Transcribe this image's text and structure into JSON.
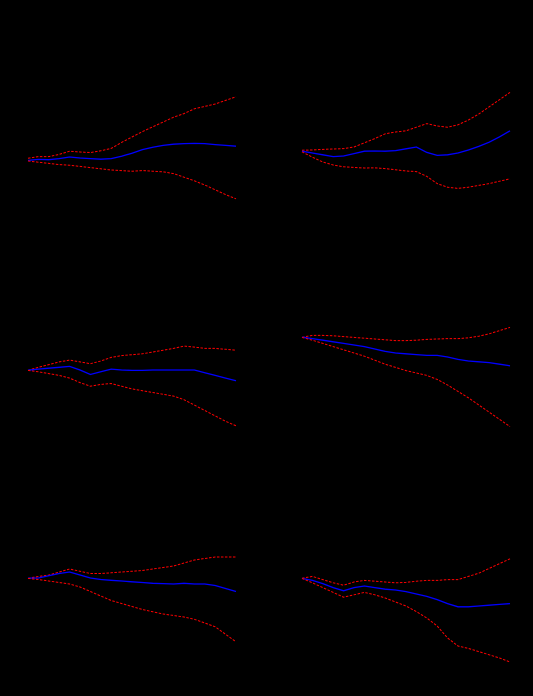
{
  "colors": {
    "background": "#000000",
    "band": "#ff0000",
    "center": "#0000ff"
  },
  "chart_data": [
    {
      "type": "line",
      "x": [
        0,
        1,
        2,
        3,
        4,
        5,
        6,
        7,
        8,
        9,
        10,
        11,
        12,
        13,
        14,
        15,
        16,
        17,
        18,
        19,
        20
      ],
      "series": [
        {
          "role": "upper",
          "values": [
            -0.02,
            0.12,
            0.12,
            0.3,
            0.57,
            0.5,
            0.45,
            0.6,
            0.8,
            1.3,
            1.75,
            2.2,
            2.6,
            3.0,
            3.4,
            3.7,
            4.1,
            4.3,
            4.5,
            4.8,
            5.1
          ]
        },
        {
          "role": "center",
          "values": [
            -0.2,
            -0.12,
            -0.14,
            -0.05,
            0.08,
            0.0,
            -0.05,
            -0.1,
            -0.05,
            0.15,
            0.4,
            0.7,
            0.9,
            1.05,
            1.15,
            1.2,
            1.22,
            1.2,
            1.12,
            1.05,
            0.98
          ]
        },
        {
          "role": "lower",
          "values": [
            -0.25,
            -0.35,
            -0.45,
            -0.55,
            -0.6,
            -0.7,
            -0.8,
            -0.9,
            -1.0,
            -1.05,
            -1.1,
            -1.05,
            -1.1,
            -1.15,
            -1.3,
            -1.6,
            -1.9,
            -2.25,
            -2.65,
            -3.05,
            -3.4
          ]
        }
      ]
    },
    {
      "type": "line",
      "x": [
        0,
        1,
        2,
        3,
        4,
        5,
        6,
        7,
        8,
        9,
        10,
        11,
        12,
        13,
        14,
        15,
        16,
        17,
        18,
        19,
        20
      ],
      "series": [
        {
          "role": "upper",
          "values": [
            -0.02,
            0.0,
            0.05,
            0.08,
            0.12,
            0.25,
            0.6,
            0.95,
            1.35,
            1.5,
            1.6,
            1.9,
            2.2,
            2.0,
            1.9,
            2.1,
            2.5,
            3.0,
            3.6,
            4.2,
            4.8
          ]
        },
        {
          "role": "center",
          "values": [
            -0.1,
            -0.25,
            -0.4,
            -0.55,
            -0.5,
            -0.3,
            -0.1,
            -0.08,
            -0.1,
            -0.05,
            0.1,
            0.25,
            -0.2,
            -0.45,
            -0.4,
            -0.25,
            0.0,
            0.3,
            0.65,
            1.1,
            1.6
          ]
        },
        {
          "role": "lower",
          "values": [
            -0.15,
            -0.6,
            -1.0,
            -1.25,
            -1.4,
            -1.45,
            -1.5,
            -1.48,
            -1.55,
            -1.65,
            -1.75,
            -1.8,
            -2.2,
            -2.8,
            -3.1,
            -3.2,
            -3.1,
            -2.95,
            -2.8,
            -2.6,
            -2.4
          ]
        }
      ]
    },
    {
      "type": "line",
      "x": [
        0,
        1,
        2,
        3,
        4,
        5,
        6,
        7,
        8,
        9,
        10,
        11,
        12,
        13,
        14,
        15,
        16,
        17,
        18,
        19,
        20
      ],
      "series": [
        {
          "role": "upper",
          "values": [
            -0.02,
            0.3,
            0.6,
            0.9,
            1.1,
            0.9,
            0.7,
            1.0,
            1.4,
            1.6,
            1.7,
            1.8,
            2.0,
            2.2,
            2.4,
            2.65,
            2.55,
            2.4,
            2.4,
            2.3,
            2.2
          ]
        },
        {
          "role": "center",
          "values": [
            -0.02,
            0.1,
            0.2,
            0.3,
            0.4,
            0.0,
            -0.5,
            -0.2,
            0.1,
            0.0,
            -0.05,
            -0.05,
            0.0,
            0.0,
            0.0,
            0.0,
            0.0,
            -0.3,
            -0.6,
            -0.9,
            -1.2
          ]
        },
        {
          "role": "lower",
          "values": [
            -0.05,
            -0.2,
            -0.4,
            -0.6,
            -0.9,
            -1.4,
            -1.8,
            -1.6,
            -1.5,
            -1.8,
            -2.1,
            -2.3,
            -2.5,
            -2.7,
            -2.9,
            -3.3,
            -3.9,
            -4.5,
            -5.1,
            -5.7,
            -6.2
          ]
        }
      ]
    },
    {
      "type": "line",
      "x": [
        0,
        1,
        2,
        3,
        4,
        5,
        6,
        7,
        8,
        9,
        10,
        11,
        12,
        13,
        14,
        15,
        16,
        17,
        18,
        19,
        20
      ],
      "series": [
        {
          "role": "upper",
          "values": [
            -0.02,
            0.2,
            0.2,
            0.15,
            0.05,
            -0.05,
            -0.15,
            -0.25,
            -0.35,
            -0.45,
            -0.45,
            -0.4,
            -0.3,
            -0.25,
            -0.2,
            -0.2,
            -0.1,
            0.1,
            0.4,
            0.8,
            1.2
          ]
        },
        {
          "role": "center",
          "values": [
            -0.02,
            -0.2,
            -0.4,
            -0.6,
            -0.8,
            -1.0,
            -1.2,
            -1.5,
            -1.8,
            -2.0,
            -2.1,
            -2.2,
            -2.3,
            -2.3,
            -2.5,
            -2.8,
            -3.0,
            -3.1,
            -3.2,
            -3.4,
            -3.6
          ]
        },
        {
          "role": "lower",
          "values": [
            -0.05,
            -0.4,
            -0.8,
            -1.2,
            -1.6,
            -2.0,
            -2.4,
            -2.9,
            -3.4,
            -3.8,
            -4.2,
            -4.5,
            -4.8,
            -5.3,
            -6.0,
            -6.8,
            -7.6,
            -8.5,
            -9.4,
            -10.3,
            -11.2
          ]
        }
      ]
    },
    {
      "type": "line",
      "x": [
        0,
        1,
        2,
        3,
        4,
        5,
        6,
        7,
        8,
        9,
        10,
        11,
        12,
        13,
        14,
        15,
        16,
        17,
        18,
        19,
        20
      ],
      "series": [
        {
          "role": "upper",
          "values": [
            -0.02,
            0.2,
            0.4,
            0.8,
            1.2,
            0.9,
            0.6,
            0.6,
            0.7,
            0.8,
            0.9,
            1.0,
            1.2,
            1.4,
            1.6,
            2.0,
            2.4,
            2.6,
            2.8,
            2.8,
            2.8
          ]
        },
        {
          "role": "center",
          "values": [
            -0.02,
            0.0,
            0.3,
            0.6,
            0.8,
            0.4,
            0.0,
            -0.2,
            -0.3,
            -0.4,
            -0.5,
            -0.6,
            -0.7,
            -0.75,
            -0.8,
            -0.7,
            -0.8,
            -0.8,
            -1.0,
            -1.4,
            -1.8
          ]
        },
        {
          "role": "lower",
          "values": [
            -0.05,
            -0.2,
            -0.4,
            -0.6,
            -0.8,
            -1.2,
            -1.8,
            -2.4,
            -3.0,
            -3.4,
            -3.8,
            -4.2,
            -4.5,
            -4.8,
            -5.0,
            -5.2,
            -5.5,
            -6.0,
            -6.5,
            -7.5,
            -8.5
          ]
        }
      ]
    },
    {
      "type": "line",
      "x": [
        0,
        1,
        2,
        3,
        4,
        5,
        6,
        7,
        8,
        9,
        10,
        11,
        12,
        13,
        14,
        15,
        16,
        17,
        18,
        19,
        20
      ],
      "series": [
        {
          "role": "upper",
          "values": [
            -0.02,
            0.2,
            -0.2,
            -0.6,
            -0.9,
            -0.5,
            -0.3,
            -0.4,
            -0.5,
            -0.6,
            -0.55,
            -0.4,
            -0.3,
            -0.3,
            -0.2,
            -0.2,
            0.2,
            0.6,
            1.2,
            1.8,
            2.4
          ]
        },
        {
          "role": "center",
          "values": [
            -0.05,
            -0.3,
            -0.7,
            -1.2,
            -1.6,
            -1.2,
            -1.0,
            -1.2,
            -1.4,
            -1.5,
            -1.7,
            -2.0,
            -2.3,
            -2.7,
            -3.2,
            -3.6,
            -3.6,
            -3.5,
            -3.4,
            -3.3,
            -3.2
          ]
        },
        {
          "role": "lower",
          "values": [
            -0.05,
            -0.6,
            -1.2,
            -1.8,
            -2.4,
            -2.1,
            -1.8,
            -2.1,
            -2.5,
            -3.0,
            -3.5,
            -4.2,
            -5.0,
            -6.0,
            -7.5,
            -8.5,
            -8.8,
            -9.2,
            -9.6,
            -10.0,
            -10.5
          ]
        }
      ]
    }
  ]
}
